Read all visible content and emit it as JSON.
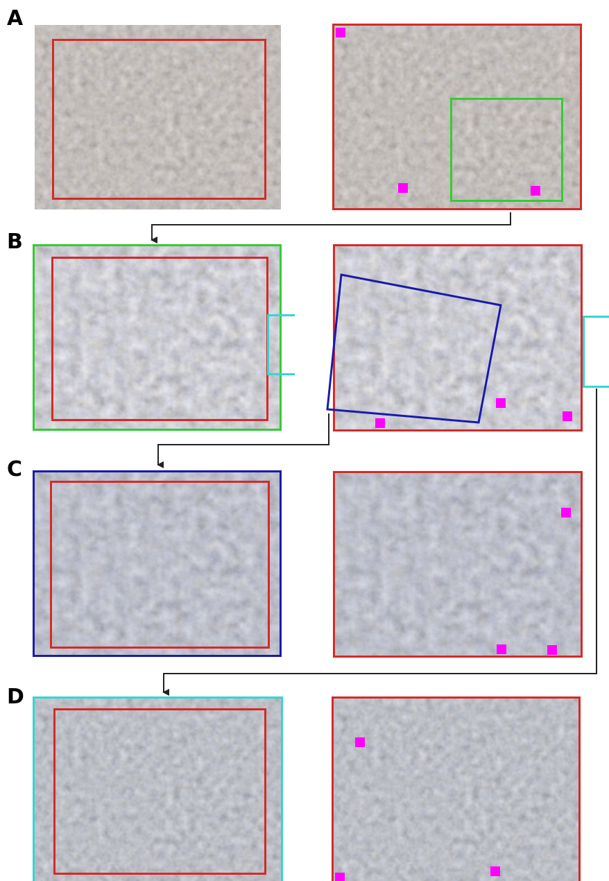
{
  "rows": [
    {
      "label": "A"
    },
    {
      "label": "B"
    },
    {
      "label": "C"
    },
    {
      "label": "D"
    }
  ],
  "colors": {
    "red": "#d42a2a",
    "green": "#33cc33",
    "blue": "#1a1aaa",
    "cyan": "#33d6d6",
    "magenta": "#ff00ff",
    "arrow": "#222222"
  }
}
